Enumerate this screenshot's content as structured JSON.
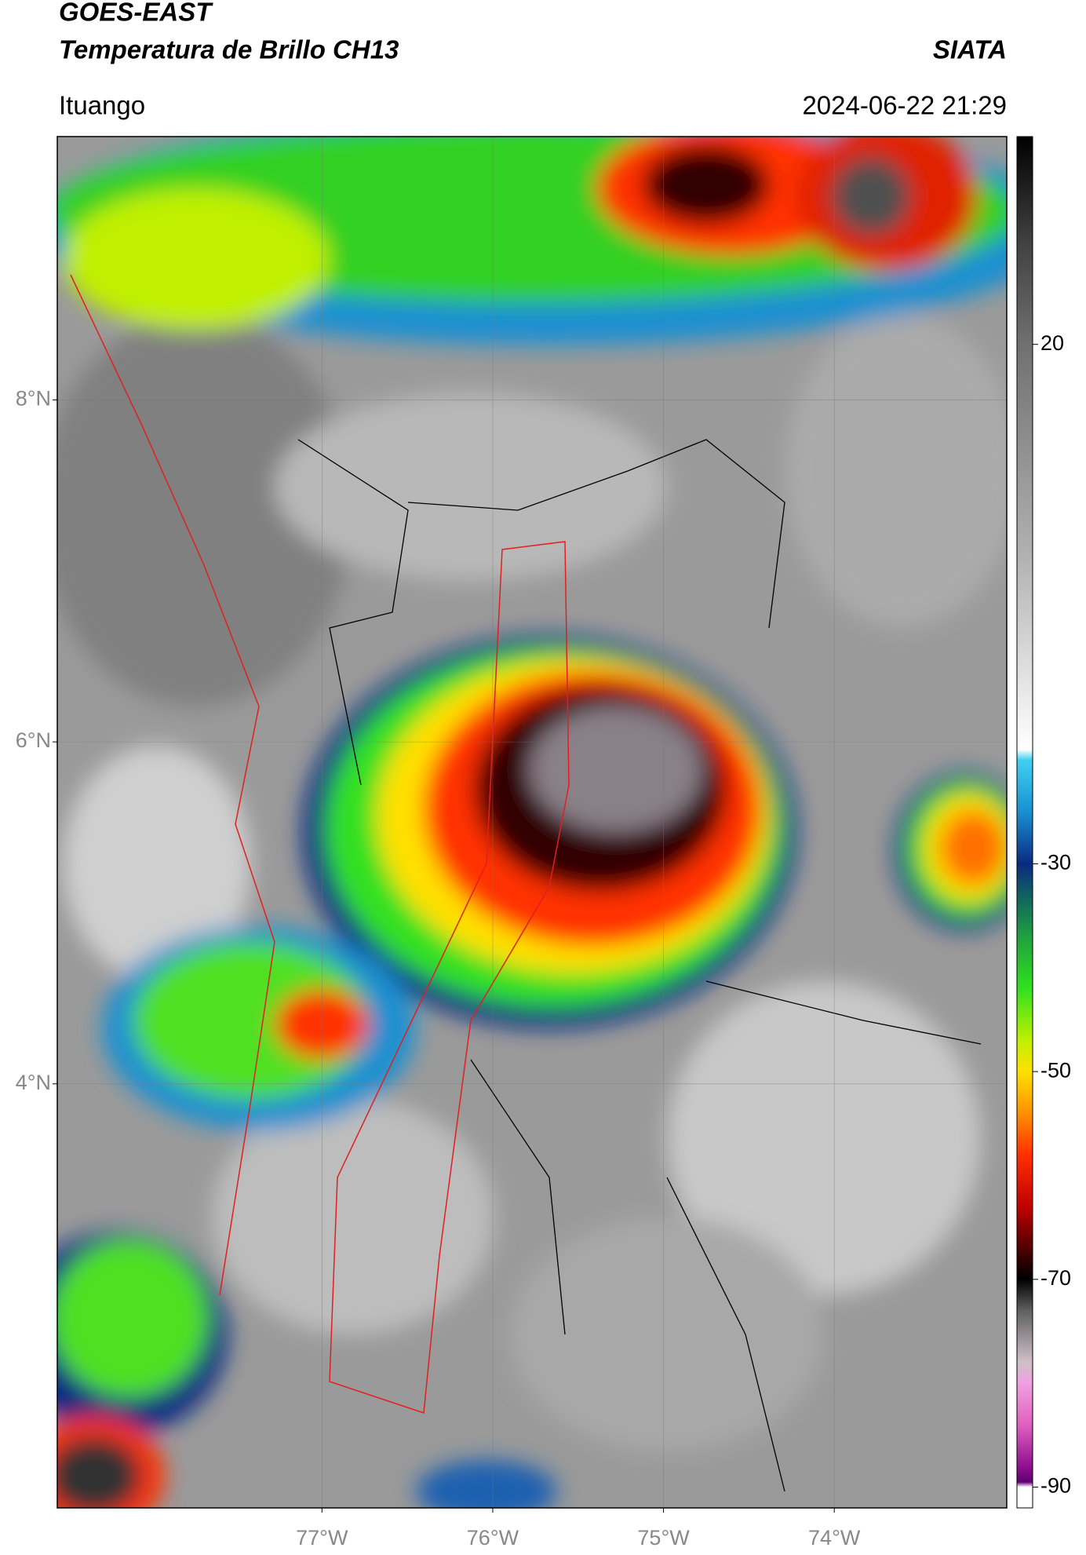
{
  "header": {
    "title": "GOES-EAST",
    "subtitle": "Temperatura de Brillo CH13",
    "source": "SIATA",
    "location": "Ituango",
    "timestamp": "2024-06-22 21:29"
  },
  "map": {
    "xlim": [
      -78.55,
      -72.99
    ],
    "ylim": [
      1.52,
      9.54
    ],
    "xticks": [
      {
        "value": -77,
        "label": "77°W"
      },
      {
        "value": -76,
        "label": "76°W"
      },
      {
        "value": -75,
        "label": "75°W"
      },
      {
        "value": -74,
        "label": "74°W"
      }
    ],
    "yticks": [
      {
        "value": 8,
        "label": "8°N"
      },
      {
        "value": 6,
        "label": "6°N"
      },
      {
        "value": 4,
        "label": "4°N"
      }
    ],
    "grid": true
  },
  "colorbar": {
    "lim": [
      -92,
      40
    ],
    "ticks": [
      20,
      -30,
      -50,
      -70,
      -90
    ],
    "colormap": [
      {
        "value": 40,
        "color": "#000000"
      },
      {
        "value": 30,
        "color": "#404040"
      },
      {
        "value": 20,
        "color": "#707070"
      },
      {
        "value": 0,
        "color": "#b0b0b0"
      },
      {
        "value": -19,
        "color": "#ffffff"
      },
      {
        "value": -20,
        "color": "#40d0f0"
      },
      {
        "value": -25,
        "color": "#1a90d0"
      },
      {
        "value": -30,
        "color": "#0a2a80"
      },
      {
        "value": -33,
        "color": "#106060"
      },
      {
        "value": -37,
        "color": "#20a040"
      },
      {
        "value": -42,
        "color": "#30e020"
      },
      {
        "value": -47,
        "color": "#c0f000"
      },
      {
        "value": -50,
        "color": "#ffe000"
      },
      {
        "value": -54,
        "color": "#ff9000"
      },
      {
        "value": -58,
        "color": "#ff3000"
      },
      {
        "value": -63,
        "color": "#c00000"
      },
      {
        "value": -67,
        "color": "#500000"
      },
      {
        "value": -70,
        "color": "#000000"
      },
      {
        "value": -73,
        "color": "#606060"
      },
      {
        "value": -78,
        "color": "#d0c0c8"
      },
      {
        "value": -80,
        "color": "#f0a0e0"
      },
      {
        "value": -84,
        "color": "#e060c0"
      },
      {
        "value": -88,
        "color": "#901090"
      },
      {
        "value": -89.5,
        "color": "#600070"
      },
      {
        "value": -90,
        "color": "#ffffff"
      },
      {
        "value": -92,
        "color": "#ffffff"
      }
    ]
  }
}
